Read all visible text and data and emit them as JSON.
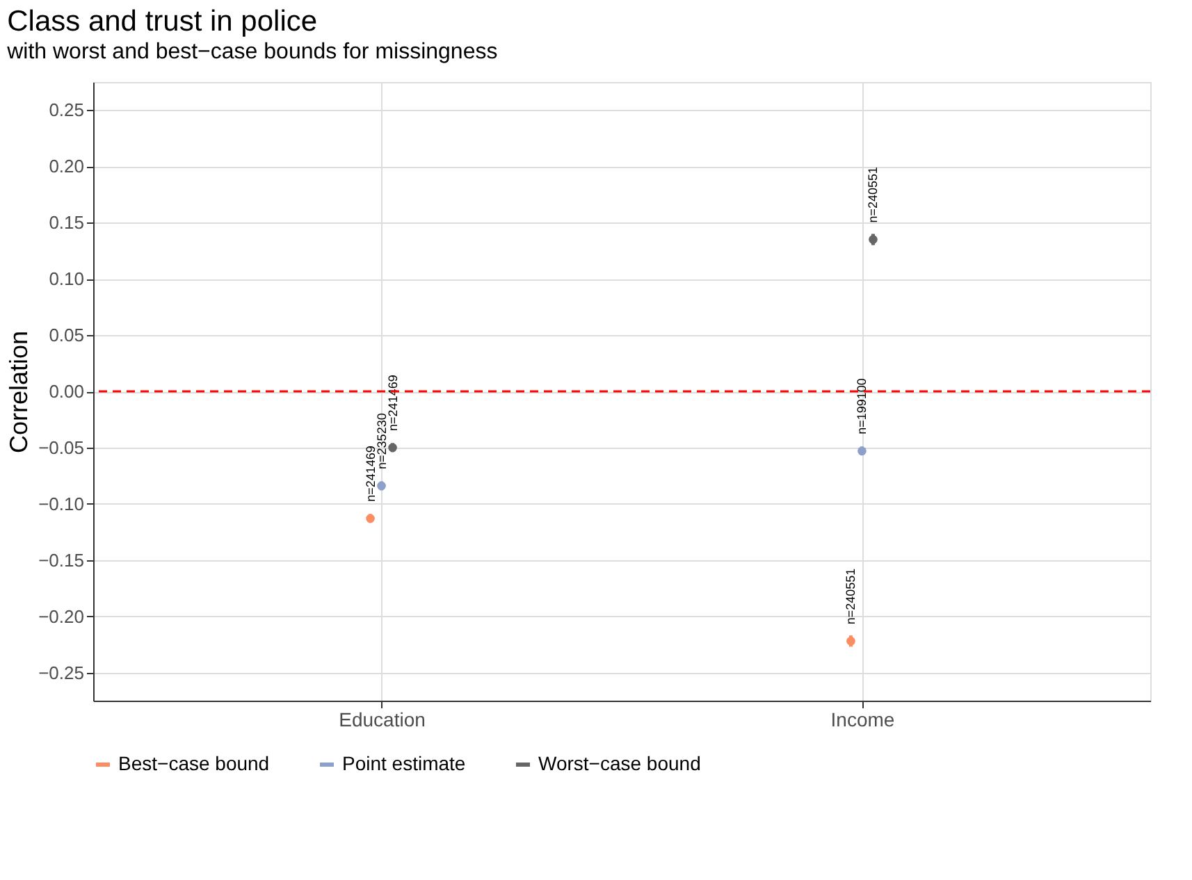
{
  "chart_data": {
    "type": "scatter",
    "title": "Class and trust in police",
    "subtitle": "with worst and best−case bounds for missingness",
    "ylabel": "Correlation",
    "categories": [
      "Education",
      "Income"
    ],
    "series": [
      {
        "name": "Best−case bound",
        "color": "#fc8d62",
        "values": [
          -0.113,
          -0.222
        ],
        "errors": [
          0.004,
          0.005
        ]
      },
      {
        "name": "Point estimate",
        "color": "#8da0cb",
        "values": [
          -0.084,
          -0.053
        ],
        "errors": [
          0.004,
          0.004
        ]
      },
      {
        "name": "Worst−case bound",
        "color": "#666666",
        "values": [
          -0.05,
          0.135
        ],
        "errors": [
          0.004,
          0.005
        ]
      }
    ],
    "annotations": [
      "n=241469",
      "n=235230",
      "n=241469",
      "n=240551",
      "n=199100",
      "n=240551"
    ],
    "ylim": [
      -0.275,
      0.275
    ],
    "yticks": [
      {
        "value": -0.25,
        "label": "−0.25"
      },
      {
        "value": -0.2,
        "label": "−0.20"
      },
      {
        "value": -0.15,
        "label": "−0.15"
      },
      {
        "value": -0.1,
        "label": "−0.10"
      },
      {
        "value": -0.05,
        "label": "−0.05"
      },
      {
        "value": 0,
        "label": "0.00"
      },
      {
        "value": 0.05,
        "label": "0.05"
      },
      {
        "value": 0.1,
        "label": "0.10"
      },
      {
        "value": 0.15,
        "label": "0.15"
      },
      {
        "value": 0.2,
        "label": "0.20"
      },
      {
        "value": 0.25,
        "label": "0.25"
      }
    ],
    "ref_lines": [
      {
        "axis": "y",
        "value": 0,
        "color": "#ff0000",
        "line_style": "dashed"
      }
    ],
    "grid": true,
    "legend": "bottom",
    "marker": "circle"
  }
}
